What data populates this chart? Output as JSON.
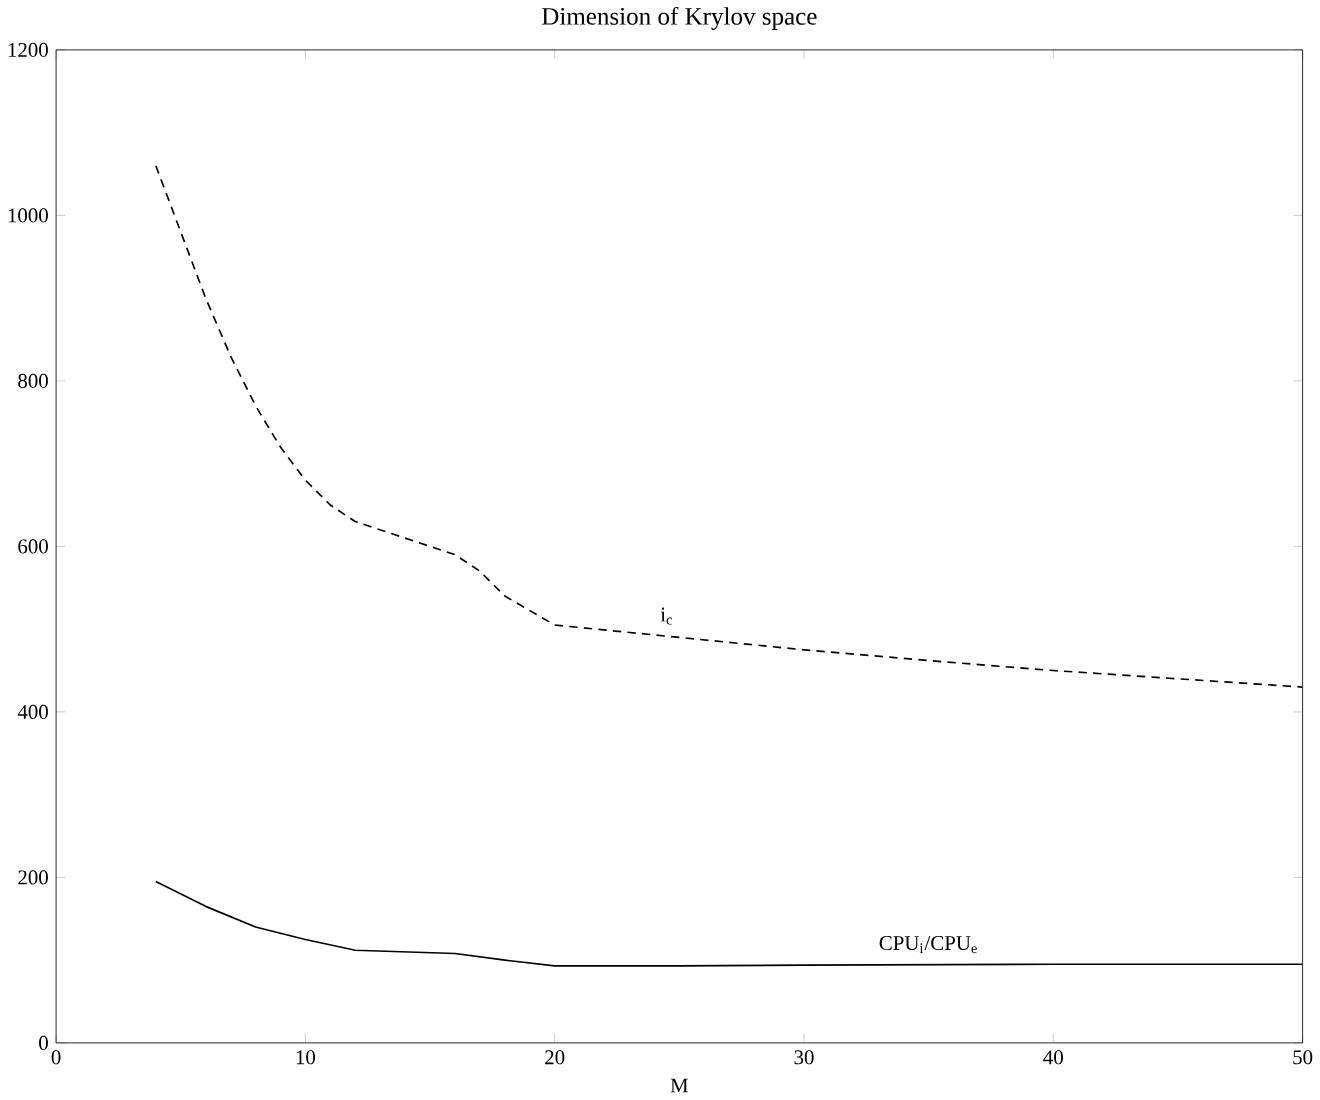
{
  "chart_data": {
    "type": "line",
    "title": "Dimension of Krylov space",
    "xlabel": "M",
    "series": [
      {
        "name": "i$_{c}$",
        "color": "#000000",
        "line_style": "dashed",
        "x": [
          4,
          5,
          6,
          7,
          8,
          9,
          10,
          11,
          12,
          14,
          16,
          17,
          18,
          20,
          25,
          30,
          35,
          40,
          45,
          50
        ],
        "values": [
          1060,
          980,
          900,
          830,
          770,
          720,
          680,
          650,
          630,
          610,
          590,
          570,
          540,
          505,
          490,
          475,
          462,
          450,
          440,
          430
        ]
      },
      {
        "name": "CPU$_{i}$/CPU$_{e}$",
        "color": "#000000",
        "line_style": "solid",
        "x": [
          4,
          6,
          8,
          10,
          12,
          14,
          16,
          18,
          20,
          25,
          30,
          40,
          50
        ],
        "values": [
          195,
          165,
          140,
          125,
          112,
          110,
          108,
          100,
          93,
          93,
          94,
          95,
          95
        ]
      }
    ],
    "xlim": [
      0,
      50
    ],
    "ylim": [
      0,
      1200
    ],
    "xticks": [
      0,
      10,
      20,
      30,
      40,
      50
    ],
    "yticks": [
      0,
      200,
      400,
      600,
      800,
      1000,
      1200
    ],
    "grid": false,
    "marker": "none"
  }
}
